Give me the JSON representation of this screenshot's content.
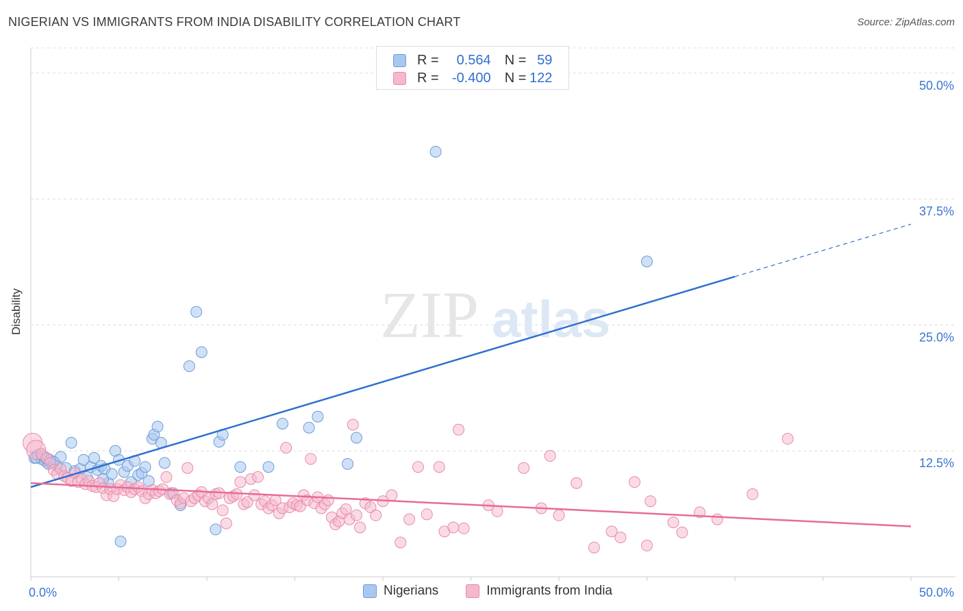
{
  "title": "NIGERIAN VS IMMIGRANTS FROM INDIA DISABILITY CORRELATION CHART",
  "source": "Source: ZipAtlas.com",
  "watermark": {
    "zip": "ZIP",
    "atlas": "atlas"
  },
  "colors": {
    "blue_fill": "#a9c8f0",
    "blue_stroke": "#6c9bd8",
    "blue_line": "#2f6fd0",
    "pink_fill": "#f5b8cc",
    "pink_stroke": "#e88aa8",
    "pink_line": "#e86a98",
    "axis_label": "#3a76cf",
    "grid": "#dddddd"
  },
  "legend": {
    "rows": [
      {
        "r_label": "R =",
        "r_value": "0.564",
        "n_label": "N =",
        "n_value": "59",
        "color": "#a9c8f0",
        "border": "#6c9bd8"
      },
      {
        "r_label": "R =",
        "r_value": "-0.400",
        "n_label": "N =",
        "n_value": "122",
        "color": "#f5b8cc",
        "border": "#e88aa8"
      }
    ],
    "series": [
      {
        "name": "Nigerians",
        "color": "#a9c8f0",
        "border": "#6c9bd8"
      },
      {
        "name": "Immigrants from India",
        "color": "#f5b8cc",
        "border": "#e88aa8"
      }
    ]
  },
  "chart_data": {
    "type": "scatter",
    "title": "NIGERIAN VS IMMIGRANTS FROM INDIA DISABILITY CORRELATION CHART",
    "xlabel": "",
    "ylabel": "Disability",
    "xlim": [
      0,
      50
    ],
    "ylim": [
      0,
      52.5
    ],
    "x_tick_labels": [
      "0.0%",
      "50.0%"
    ],
    "y_ticks": [
      12.5,
      25.0,
      37.5,
      50.0
    ],
    "y_tick_labels": [
      "12.5%",
      "25.0%",
      "37.5%",
      "50.0%"
    ],
    "series": [
      {
        "name": "Nigerians",
        "trend": {
          "x0": 0,
          "y0": 8.9,
          "x1": 40,
          "y1": 29.8,
          "dash_to_x": 50,
          "dash_to_y": 35.0
        },
        "points": [
          [
            0.2,
            11.8
          ],
          [
            0.4,
            12.1
          ],
          [
            0.6,
            11.7
          ],
          [
            0.8,
            11.5
          ],
          [
            1.0,
            11.2
          ],
          [
            1.2,
            11.3
          ],
          [
            1.5,
            11.0
          ],
          [
            1.7,
            11.9
          ],
          [
            2.0,
            10.8
          ],
          [
            2.3,
            13.3
          ],
          [
            2.5,
            10.5
          ],
          [
            2.8,
            10.7
          ],
          [
            3.0,
            11.6
          ],
          [
            3.2,
            9.9
          ],
          [
            3.4,
            10.9
          ],
          [
            3.6,
            11.8
          ],
          [
            3.8,
            10.6
          ],
          [
            4.0,
            11.0
          ],
          [
            4.2,
            10.7
          ],
          [
            4.4,
            9.3
          ],
          [
            4.6,
            10.2
          ],
          [
            4.8,
            12.5
          ],
          [
            5.0,
            11.6
          ],
          [
            5.3,
            10.4
          ],
          [
            5.5,
            11.0
          ],
          [
            5.7,
            9.4
          ],
          [
            5.9,
            11.5
          ],
          [
            6.1,
            10.1
          ],
          [
            6.3,
            10.3
          ],
          [
            6.5,
            10.9
          ],
          [
            6.7,
            9.5
          ],
          [
            6.9,
            13.7
          ],
          [
            7.0,
            14.1
          ],
          [
            7.2,
            14.9
          ],
          [
            7.4,
            13.3
          ],
          [
            7.6,
            11.3
          ],
          [
            8.0,
            8.3
          ],
          [
            8.5,
            7.1
          ],
          [
            9.0,
            20.9
          ],
          [
            9.4,
            26.3
          ],
          [
            9.7,
            22.3
          ],
          [
            10.5,
            4.7
          ],
          [
            10.7,
            13.4
          ],
          [
            10.9,
            14.1
          ],
          [
            11.9,
            10.9
          ],
          [
            13.5,
            10.9
          ],
          [
            14.3,
            15.2
          ],
          [
            15.8,
            14.8
          ],
          [
            16.3,
            15.9
          ],
          [
            18.0,
            11.2
          ],
          [
            18.5,
            13.8
          ],
          [
            0.3,
            11.8
          ],
          [
            0.7,
            12.0
          ],
          [
            0.9,
            11.7
          ],
          [
            1.1,
            11.6
          ],
          [
            1.3,
            11.4
          ],
          [
            4.1,
            9.7
          ],
          [
            5.1,
            3.5
          ],
          [
            23.0,
            42.2
          ],
          [
            35.0,
            31.3
          ]
        ]
      },
      {
        "name": "Immigrants from India",
        "trend": {
          "x0": 0,
          "y0": 9.3,
          "x1": 50,
          "y1": 5.0
        },
        "points": [
          [
            0.1,
            13.3
          ],
          [
            0.3,
            12.6
          ],
          [
            0.6,
            12.2
          ],
          [
            0.9,
            11.8
          ],
          [
            1.1,
            11.3
          ],
          [
            1.3,
            10.6
          ],
          [
            1.5,
            10.2
          ],
          [
            1.7,
            10.7
          ],
          [
            1.9,
            10.0
          ],
          [
            2.1,
            9.8
          ],
          [
            2.3,
            9.5
          ],
          [
            2.5,
            10.3
          ],
          [
            2.7,
            9.4
          ],
          [
            2.9,
            9.7
          ],
          [
            3.1,
            9.2
          ],
          [
            3.3,
            9.5
          ],
          [
            3.5,
            9.0
          ],
          [
            3.7,
            8.9
          ],
          [
            3.9,
            9.3
          ],
          [
            4.1,
            8.8
          ],
          [
            4.3,
            8.1
          ],
          [
            4.5,
            8.7
          ],
          [
            4.7,
            8.0
          ],
          [
            4.9,
            8.7
          ],
          [
            5.1,
            9.1
          ],
          [
            5.3,
            8.6
          ],
          [
            5.5,
            8.9
          ],
          [
            5.7,
            8.4
          ],
          [
            5.9,
            8.7
          ],
          [
            6.1,
            8.9
          ],
          [
            6.3,
            8.5
          ],
          [
            6.5,
            7.8
          ],
          [
            6.7,
            8.2
          ],
          [
            6.9,
            8.6
          ],
          [
            7.1,
            8.3
          ],
          [
            7.3,
            8.5
          ],
          [
            7.5,
            8.7
          ],
          [
            7.7,
            9.9
          ],
          [
            7.9,
            8.2
          ],
          [
            8.1,
            8.3
          ],
          [
            8.3,
            7.6
          ],
          [
            8.5,
            7.3
          ],
          [
            8.7,
            7.8
          ],
          [
            8.9,
            10.8
          ],
          [
            9.1,
            7.5
          ],
          [
            9.3,
            7.8
          ],
          [
            9.5,
            8.1
          ],
          [
            9.7,
            8.4
          ],
          [
            9.9,
            7.5
          ],
          [
            10.1,
            7.8
          ],
          [
            10.3,
            7.2
          ],
          [
            10.5,
            8.2
          ],
          [
            10.7,
            8.3
          ],
          [
            10.9,
            6.6
          ],
          [
            11.1,
            5.3
          ],
          [
            11.3,
            7.8
          ],
          [
            11.5,
            8.0
          ],
          [
            11.7,
            8.2
          ],
          [
            11.9,
            9.4
          ],
          [
            12.1,
            7.2
          ],
          [
            12.3,
            7.4
          ],
          [
            12.5,
            9.7
          ],
          [
            12.7,
            8.1
          ],
          [
            12.9,
            9.9
          ],
          [
            13.1,
            7.2
          ],
          [
            13.3,
            7.5
          ],
          [
            13.5,
            6.8
          ],
          [
            13.7,
            7.1
          ],
          [
            13.9,
            7.6
          ],
          [
            14.1,
            6.3
          ],
          [
            14.3,
            6.8
          ],
          [
            14.5,
            12.8
          ],
          [
            14.7,
            6.9
          ],
          [
            14.9,
            7.3
          ],
          [
            15.1,
            7.1
          ],
          [
            15.3,
            7.0
          ],
          [
            15.5,
            8.1
          ],
          [
            15.7,
            7.6
          ],
          [
            15.9,
            11.7
          ],
          [
            16.1,
            7.3
          ],
          [
            16.3,
            7.9
          ],
          [
            16.5,
            6.8
          ],
          [
            16.7,
            7.2
          ],
          [
            16.9,
            7.6
          ],
          [
            17.1,
            5.9
          ],
          [
            17.3,
            5.2
          ],
          [
            17.5,
            5.5
          ],
          [
            17.7,
            6.3
          ],
          [
            17.9,
            6.7
          ],
          [
            18.1,
            5.7
          ],
          [
            18.3,
            15.1
          ],
          [
            18.5,
            6.1
          ],
          [
            18.7,
            4.9
          ],
          [
            19.0,
            7.3
          ],
          [
            19.3,
            6.9
          ],
          [
            19.6,
            6.1
          ],
          [
            20.0,
            7.5
          ],
          [
            20.5,
            8.1
          ],
          [
            21.0,
            3.4
          ],
          [
            21.5,
            5.7
          ],
          [
            22.0,
            10.9
          ],
          [
            22.5,
            6.2
          ],
          [
            23.2,
            10.9
          ],
          [
            23.5,
            4.5
          ],
          [
            24.0,
            4.9
          ],
          [
            24.3,
            14.6
          ],
          [
            24.6,
            4.8
          ],
          [
            26.0,
            7.1
          ],
          [
            26.5,
            6.5
          ],
          [
            28.0,
            10.8
          ],
          [
            29.0,
            6.8
          ],
          [
            29.5,
            12.0
          ],
          [
            30.0,
            6.1
          ],
          [
            31.0,
            9.3
          ],
          [
            32.0,
            2.9
          ],
          [
            33.0,
            4.5
          ],
          [
            33.5,
            3.9
          ],
          [
            34.3,
            9.4
          ],
          [
            35.0,
            3.1
          ],
          [
            36.5,
            5.4
          ],
          [
            37.0,
            4.4
          ],
          [
            38.0,
            6.4
          ],
          [
            39.0,
            5.7
          ],
          [
            41.0,
            8.2
          ],
          [
            43.0,
            13.7
          ],
          [
            35.2,
            7.5
          ]
        ]
      }
    ]
  }
}
